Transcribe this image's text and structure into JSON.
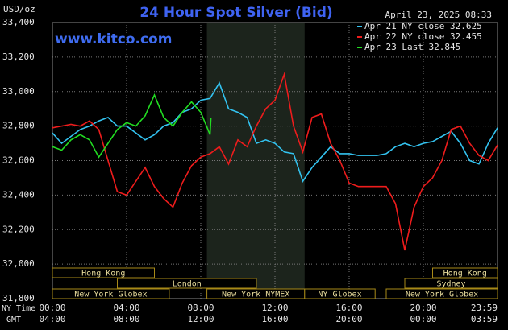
{
  "chart_data": {
    "type": "line",
    "title": "24 Hour Spot Silver (Bid)",
    "subtitle": "www.kitco.com",
    "timestamp": "April 23, 2025 08:33",
    "y_label": "USD/oz",
    "x_label": "NY Time",
    "x2_label": "GMT",
    "ylim": [
      31800,
      33400
    ],
    "yticks": [
      {
        "value": 31800,
        "label": "31,800"
      },
      {
        "value": 32000,
        "label": "32,000"
      },
      {
        "value": 32200,
        "label": "32,200"
      },
      {
        "value": 32400,
        "label": "32,400"
      },
      {
        "value": 32600,
        "label": "32,600"
      },
      {
        "value": 32800,
        "label": "32,800"
      },
      {
        "value": 33000,
        "label": "33,000"
      },
      {
        "value": 33200,
        "label": "33,200"
      },
      {
        "value": 33400,
        "label": "33,400"
      }
    ],
    "xlim": [
      0,
      24
    ],
    "xticks": [
      {
        "value": 0,
        "label": "00:00"
      },
      {
        "value": 4,
        "label": "04:00"
      },
      {
        "value": 8,
        "label": "08:00"
      },
      {
        "value": 12,
        "label": "12:00"
      },
      {
        "value": 16,
        "label": "16:00"
      },
      {
        "value": 20,
        "label": "20:00"
      },
      {
        "value": 24,
        "label": "23:59"
      }
    ],
    "x2ticks": [
      {
        "value": 0,
        "label": "04:00"
      },
      {
        "value": 4,
        "label": "08:00"
      },
      {
        "value": 8,
        "label": "12:00"
      },
      {
        "value": 12,
        "label": "16:00"
      },
      {
        "value": 16,
        "label": "20:00"
      },
      {
        "value": 20,
        "label": "00:00"
      },
      {
        "value": 24,
        "label": "03:59"
      }
    ],
    "grid": true,
    "shaded_range": [
      8.33,
      13.6
    ],
    "sessions": [
      {
        "name": "Hong Kong",
        "start": 0,
        "end": 5.5,
        "row": 0
      },
      {
        "name": "London",
        "start": 3.5,
        "end": 11,
        "row": 1
      },
      {
        "name": "New York Globex",
        "start": 0,
        "end": 6.3,
        "row": 2
      },
      {
        "name": "New York NYMEX",
        "start": 8.33,
        "end": 13.6,
        "row": 2
      },
      {
        "name": "NY Globex",
        "start": 13.6,
        "end": 17.4,
        "row": 2
      },
      {
        "name": "Hong Kong",
        "start": 20.5,
        "end": 24,
        "row": 0
      },
      {
        "name": "Sydney",
        "start": 19,
        "end": 24,
        "row": 1
      },
      {
        "name": "New York Globex",
        "start": 18,
        "end": 24,
        "row": 2
      }
    ],
    "series": [
      {
        "name": "Apr 21 NY close 32.625",
        "color": "#33c3f0",
        "x": [
          0,
          0.5,
          1,
          1.5,
          2,
          2.5,
          3,
          3.5,
          4,
          4.5,
          5,
          5.5,
          6,
          6.5,
          7,
          7.5,
          8,
          8.5,
          9,
          9.5,
          10,
          10.5,
          11,
          11.5,
          12,
          12.5,
          13,
          13.5,
          14,
          14.5,
          15,
          15.5,
          16,
          16.5,
          17,
          17.5,
          18,
          18.5,
          19,
          19.5,
          20,
          20.5,
          21,
          21.5,
          22,
          22.5,
          23,
          23.5,
          24
        ],
        "values": [
          32760,
          32700,
          32740,
          32780,
          32800,
          32830,
          32850,
          32800,
          32800,
          32760,
          32720,
          32750,
          32800,
          32820,
          32880,
          32900,
          32950,
          32960,
          33050,
          32900,
          32880,
          32850,
          32700,
          32720,
          32700,
          32650,
          32640,
          32480,
          32560,
          32620,
          32680,
          32640,
          32640,
          32630,
          32630,
          32630,
          32640,
          32680,
          32700,
          32680,
          32700,
          32710,
          32740,
          32770,
          32700,
          32600,
          32580,
          32700,
          32790
        ]
      },
      {
        "name": "Apr 22 NY close 32.455",
        "color": "#ee1c1c",
        "x": [
          0,
          0.5,
          1,
          1.5,
          2,
          2.5,
          3,
          3.5,
          4,
          4.5,
          5,
          5.5,
          6,
          6.5,
          7,
          7.5,
          8,
          8.5,
          9,
          9.5,
          10,
          10.5,
          11,
          11.5,
          12,
          12.5,
          13,
          13.5,
          14,
          14.5,
          15,
          15.5,
          16,
          16.5,
          17,
          17.5,
          18,
          18.5,
          19,
          19.5,
          20,
          20.5,
          21,
          21.5,
          22,
          22.5,
          23,
          23.5,
          24
        ],
        "values": [
          32790,
          32800,
          32810,
          32800,
          32830,
          32780,
          32600,
          32420,
          32400,
          32480,
          32560,
          32450,
          32380,
          32330,
          32470,
          32570,
          32620,
          32640,
          32680,
          32580,
          32720,
          32680,
          32800,
          32900,
          32950,
          33100,
          32800,
          32650,
          32850,
          32870,
          32700,
          32600,
          32470,
          32450,
          32450,
          32450,
          32450,
          32350,
          32080,
          32330,
          32450,
          32500,
          32600,
          32780,
          32800,
          32700,
          32630,
          32600,
          32690
        ]
      },
      {
        "name": "Apr 23 Last 32.845",
        "color": "#22dd22",
        "x": [
          0,
          0.5,
          1,
          1.5,
          2,
          2.5,
          3,
          3.5,
          4,
          4.5,
          5,
          5.5,
          6,
          6.5,
          7,
          7.5,
          8,
          8.5,
          8.55
        ],
        "values": [
          32680,
          32660,
          32720,
          32750,
          32720,
          32620,
          32700,
          32780,
          32820,
          32800,
          32860,
          32980,
          32850,
          32800,
          32880,
          32940,
          32880,
          32750,
          32845
        ]
      }
    ]
  }
}
